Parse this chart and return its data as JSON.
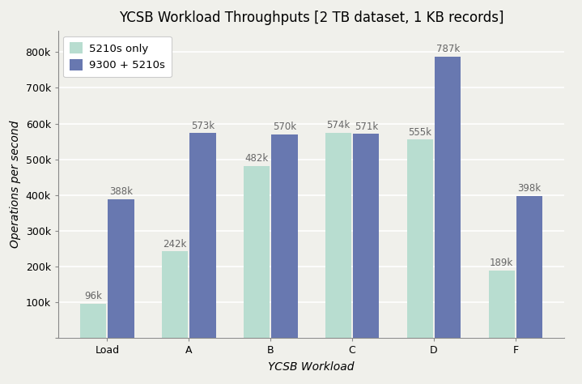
{
  "title": "YCSB Workload Throughputs [2 TB dataset, 1 KB records]",
  "xlabel": "YCSB Workload",
  "ylabel": "Operations per second",
  "categories": [
    "Load",
    "A",
    "B",
    "C",
    "D",
    "F"
  ],
  "series": {
    "5210s only": [
      96000,
      242000,
      482000,
      574000,
      555000,
      189000
    ],
    "9300 + 5210s": [
      388000,
      573000,
      570000,
      571000,
      787000,
      398000
    ]
  },
  "labels": {
    "5210s only": [
      "96k",
      "242k",
      "482k",
      "574k",
      "555k",
      "189k"
    ],
    "9300 + 5210s": [
      "388k",
      "573k",
      "570k",
      "571k",
      "787k",
      "398k"
    ]
  },
  "colors": {
    "5210s only": "#b8ddd0",
    "9300 + 5210s": "#6878b0"
  },
  "ylim": [
    0,
    860000
  ],
  "yticks": [
    0,
    100000,
    200000,
    300000,
    400000,
    500000,
    600000,
    700000,
    800000
  ],
  "ytick_labels": [
    "",
    "100k",
    "200k",
    "300k",
    "400k",
    "500k",
    "600k",
    "700k",
    "800k"
  ],
  "background_color": "#f0f0eb",
  "plot_bg_color": "#f0f0eb",
  "grid_color": "#ffffff",
  "bar_width": 0.32,
  "title_fontsize": 12,
  "axis_label_fontsize": 10,
  "tick_fontsize": 9,
  "annotation_fontsize": 8.5
}
